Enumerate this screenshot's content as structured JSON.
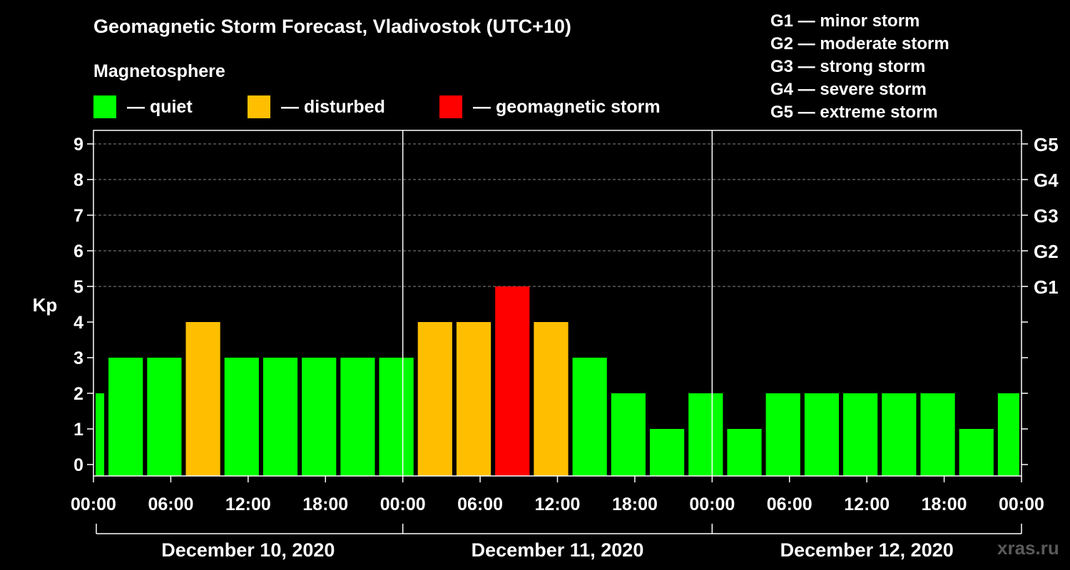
{
  "chart_data": {
    "type": "bar",
    "title": "Geomagnetic Storm Forecast, Vladivostok (UTC+10)",
    "subtitle": "Magnetosphere",
    "ylabel": "Kp",
    "ylim": [
      0,
      9
    ],
    "y_ticks": [
      "0",
      "1",
      "2",
      "3",
      "4",
      "5",
      "6",
      "7",
      "8",
      "9"
    ],
    "right_ticks": [
      {
        "kp": 5,
        "label": "G1"
      },
      {
        "kp": 6,
        "label": "G2"
      },
      {
        "kp": 7,
        "label": "G3"
      },
      {
        "kp": 8,
        "label": "G4"
      },
      {
        "kp": 9,
        "label": "G5"
      }
    ],
    "x_tick_labels": [
      "00:00",
      "06:00",
      "12:00",
      "18:00",
      "00:00",
      "06:00",
      "12:00",
      "18:00",
      "00:00",
      "06:00",
      "12:00",
      "18:00",
      "00:00"
    ],
    "x_tick_hours": [
      0,
      6,
      12,
      18,
      24,
      30,
      36,
      42,
      48,
      54,
      60,
      66,
      72
    ],
    "days": [
      {
        "label": "December 10, 2020",
        "start_hour": 0,
        "end_hour": 24
      },
      {
        "label": "December 11, 2020",
        "start_hour": 24,
        "end_hour": 48
      },
      {
        "label": "December 12, 2020",
        "start_hour": 48,
        "end_hour": 72
      }
    ],
    "x_range_hours": [
      0,
      72
    ],
    "bars": [
      {
        "start": 0,
        "end": 1,
        "value": 2,
        "level": "quiet"
      },
      {
        "start": 1,
        "end": 4,
        "value": 3,
        "level": "quiet"
      },
      {
        "start": 4,
        "end": 7,
        "value": 3,
        "level": "quiet"
      },
      {
        "start": 7,
        "end": 10,
        "value": 4,
        "level": "disturbed"
      },
      {
        "start": 10,
        "end": 13,
        "value": 3,
        "level": "quiet"
      },
      {
        "start": 13,
        "end": 16,
        "value": 3,
        "level": "quiet"
      },
      {
        "start": 16,
        "end": 19,
        "value": 3,
        "level": "quiet"
      },
      {
        "start": 19,
        "end": 22,
        "value": 3,
        "level": "quiet"
      },
      {
        "start": 22,
        "end": 25,
        "value": 3,
        "level": "quiet"
      },
      {
        "start": 25,
        "end": 28,
        "value": 4,
        "level": "disturbed"
      },
      {
        "start": 28,
        "end": 31,
        "value": 4,
        "level": "disturbed"
      },
      {
        "start": 31,
        "end": 34,
        "value": 5,
        "level": "storm"
      },
      {
        "start": 34,
        "end": 37,
        "value": 4,
        "level": "disturbed"
      },
      {
        "start": 37,
        "end": 40,
        "value": 3,
        "level": "quiet"
      },
      {
        "start": 40,
        "end": 43,
        "value": 2,
        "level": "quiet"
      },
      {
        "start": 43,
        "end": 46,
        "value": 1,
        "level": "quiet"
      },
      {
        "start": 46,
        "end": 49,
        "value": 2,
        "level": "quiet"
      },
      {
        "start": 49,
        "end": 52,
        "value": 1,
        "level": "quiet"
      },
      {
        "start": 52,
        "end": 55,
        "value": 2,
        "level": "quiet"
      },
      {
        "start": 55,
        "end": 58,
        "value": 2,
        "level": "quiet"
      },
      {
        "start": 58,
        "end": 61,
        "value": 2,
        "level": "quiet"
      },
      {
        "start": 61,
        "end": 64,
        "value": 2,
        "level": "quiet"
      },
      {
        "start": 64,
        "end": 67,
        "value": 2,
        "level": "quiet"
      },
      {
        "start": 67,
        "end": 70,
        "value": 1,
        "level": "quiet"
      },
      {
        "start": 70,
        "end": 72,
        "value": 2,
        "level": "quiet"
      }
    ]
  },
  "legend": {
    "quiet": {
      "label": "— quiet",
      "color": "#00ff00"
    },
    "disturbed": {
      "label": "— disturbed",
      "color": "#ffbf00"
    },
    "storm": {
      "label": "— geomagnetic storm",
      "color": "#ff0000"
    }
  },
  "storm_scale": [
    "G1 — minor storm",
    "G2 — moderate storm",
    "G3 — strong storm",
    "G4 — severe storm",
    "G5 — extreme storm"
  ],
  "watermark": "xras.ru"
}
